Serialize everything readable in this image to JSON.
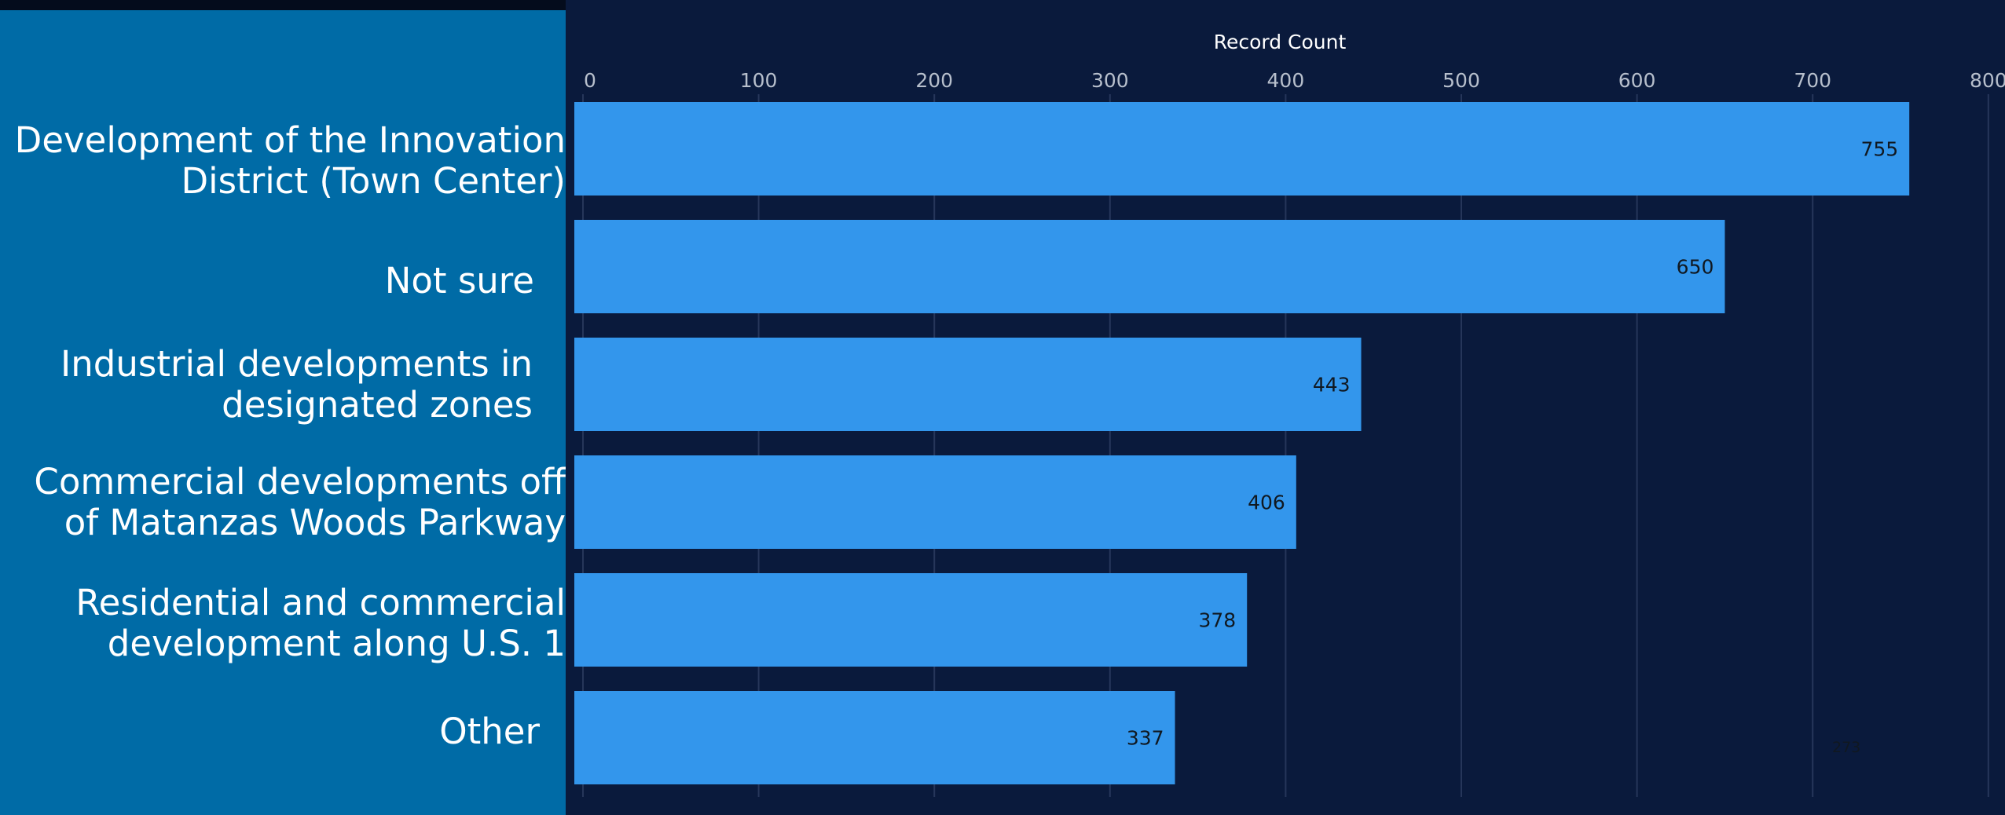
{
  "chart_data": {
    "type": "bar",
    "orientation": "horizontal",
    "xlabel": "Record Count",
    "xlim": [
      0,
      800
    ],
    "xticks": [
      0,
      100,
      200,
      300,
      400,
      500,
      600,
      700,
      800
    ],
    "xtick_labels": [
      "0",
      "100",
      "200",
      "300",
      "400",
      "500",
      "600",
      "700",
      "800"
    ],
    "categories": [
      [
        "Development of the Innovation",
        "District (Town Center)"
      ],
      [
        "Not sure"
      ],
      [
        "Industrial developments in",
        "designated zones"
      ],
      [
        "Commercial developments off",
        "of Matanzas Woods Parkway"
      ],
      [
        "Residential and commercial",
        "development along U.S. 1"
      ],
      [
        "Other"
      ]
    ],
    "values": [
      755,
      650,
      443,
      406,
      378,
      337
    ],
    "data_labels": [
      "755",
      "650",
      "443",
      "406",
      "378",
      "337"
    ],
    "grid": true,
    "axis_position": "top",
    "bar_color": "#3396ec",
    "plot_background": "#0a1a3c",
    "grid_color": "#26365a",
    "tick_label_color": "#b7bfcc",
    "data_label_color": "#101820"
  },
  "footnote": "273",
  "colors": {
    "page_background": "#006ba6",
    "category_text": "#ffffff",
    "axis_title_text": "#ffffff"
  }
}
